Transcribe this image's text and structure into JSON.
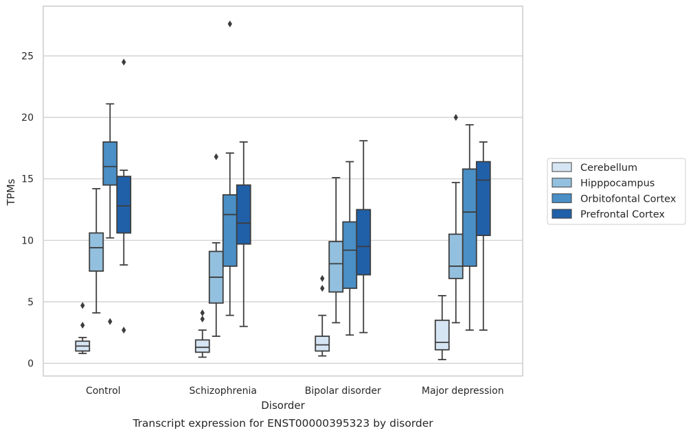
{
  "chart_data": {
    "type": "box",
    "caption": "Transcript expression for ENST00000395323 by disorder",
    "xlabel": "Disorder",
    "ylabel": "TPMs",
    "ylim": [
      -1,
      29
    ],
    "yticks": [
      0,
      5,
      10,
      15,
      20,
      25
    ],
    "grid": true,
    "legend_position": "right",
    "categories": [
      "Control",
      "Schizophrenia",
      "Bipolar disorder",
      "Major depression"
    ],
    "series": [
      {
        "name": "Cerebellum",
        "color": "#d6e5f3",
        "boxes": [
          {
            "whisker_low": 0.8,
            "q1": 1.0,
            "median": 1.4,
            "q3": 1.8,
            "whisker_high": 2.1,
            "outliers": [
              3.1,
              4.7
            ]
          },
          {
            "whisker_low": 0.5,
            "q1": 0.9,
            "median": 1.3,
            "q3": 1.9,
            "whisker_high": 2.7,
            "outliers": [
              3.6,
              4.1
            ]
          },
          {
            "whisker_low": 0.6,
            "q1": 1.0,
            "median": 1.5,
            "q3": 2.2,
            "whisker_high": 3.9,
            "outliers": [
              6.1,
              6.9
            ]
          },
          {
            "whisker_low": 0.3,
            "q1": 1.1,
            "median": 1.7,
            "q3": 3.5,
            "whisker_high": 5.5,
            "outliers": []
          }
        ]
      },
      {
        "name": "Hipppocampus",
        "color": "#93c0de",
        "boxes": [
          {
            "whisker_low": 4.1,
            "q1": 7.5,
            "median": 9.4,
            "q3": 10.6,
            "whisker_high": 14.2,
            "outliers": []
          },
          {
            "whisker_low": 2.2,
            "q1": 4.9,
            "median": 7.0,
            "q3": 9.1,
            "whisker_high": 9.8,
            "outliers": [
              16.8
            ]
          },
          {
            "whisker_low": 3.3,
            "q1": 5.8,
            "median": 8.1,
            "q3": 9.9,
            "whisker_high": 15.1,
            "outliers": []
          },
          {
            "whisker_low": 3.3,
            "q1": 6.9,
            "median": 7.9,
            "q3": 10.5,
            "whisker_high": 14.7,
            "outliers": [
              20.0
            ]
          }
        ]
      },
      {
        "name": "Orbitofontal Cortex",
        "color": "#4a8fc5",
        "boxes": [
          {
            "whisker_low": 10.2,
            "q1": 14.5,
            "median": 16.0,
            "q3": 18.0,
            "whisker_high": 21.1,
            "outliers": [
              3.4
            ]
          },
          {
            "whisker_low": 3.9,
            "q1": 7.9,
            "median": 12.1,
            "q3": 13.7,
            "whisker_high": 17.1,
            "outliers": [
              27.6
            ]
          },
          {
            "whisker_low": 2.3,
            "q1": 6.1,
            "median": 9.2,
            "q3": 11.5,
            "whisker_high": 16.4,
            "outliers": []
          },
          {
            "whisker_low": 2.7,
            "q1": 7.9,
            "median": 12.3,
            "q3": 15.8,
            "whisker_high": 19.4,
            "outliers": []
          }
        ]
      },
      {
        "name": "Prefrontal Cortex",
        "color": "#2060a8",
        "boxes": [
          {
            "whisker_low": 8.0,
            "q1": 10.6,
            "median": 12.8,
            "q3": 15.2,
            "whisker_high": 15.7,
            "outliers": [
              2.7,
              24.5
            ]
          },
          {
            "whisker_low": 3.0,
            "q1": 9.7,
            "median": 11.4,
            "q3": 14.5,
            "whisker_high": 18.0,
            "outliers": []
          },
          {
            "whisker_low": 2.5,
            "q1": 7.2,
            "median": 9.5,
            "q3": 12.5,
            "whisker_high": 18.1,
            "outliers": []
          },
          {
            "whisker_low": 2.7,
            "q1": 10.4,
            "median": 14.9,
            "q3": 16.4,
            "whisker_high": 18.0,
            "outliers": []
          }
        ]
      }
    ]
  }
}
